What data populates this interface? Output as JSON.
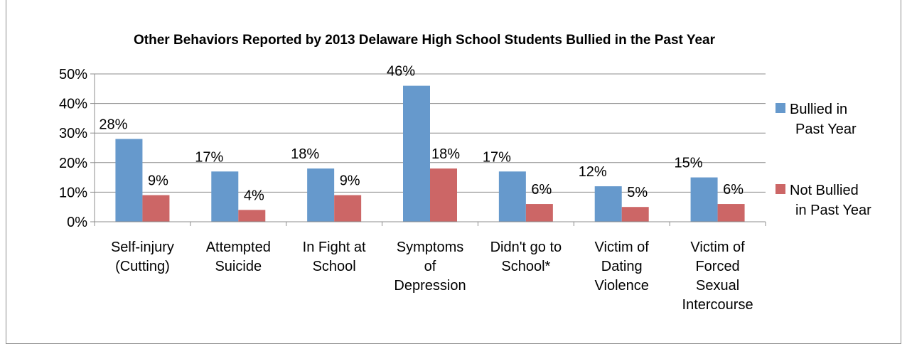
{
  "chart_data": {
    "type": "bar",
    "title": "Other Behaviors Reported by 2013 Delaware High School Students Bullied in the Past Year",
    "xlabel": "",
    "ylabel": "",
    "ylim": [
      0,
      50
    ],
    "yticks": [
      "0%",
      "10%",
      "20%",
      "30%",
      "40%",
      "50%"
    ],
    "grid": true,
    "legend_position": "right",
    "categories": [
      [
        "Self-injury",
        "(Cutting)"
      ],
      [
        "Attempted",
        "Suicide"
      ],
      [
        "In Fight at",
        "School"
      ],
      [
        "Symptoms",
        "of",
        "Depression"
      ],
      [
        "Didn't go to",
        "School*"
      ],
      [
        "Victim of",
        "Dating",
        "Violence"
      ],
      [
        "Victim of",
        "Forced",
        "Sexual",
        "Intercourse"
      ]
    ],
    "series": [
      {
        "name": [
          "Bullied in",
          "Past Year"
        ],
        "color": "#6699cc",
        "values": [
          28,
          17,
          18,
          46,
          17,
          12,
          15
        ],
        "labels": [
          "28%",
          "17%",
          "18%",
          "46%",
          "17%",
          "12%",
          "15%"
        ]
      },
      {
        "name": [
          "Not Bullied",
          "in Past Year"
        ],
        "color": "#cc6666",
        "values": [
          9,
          4,
          9,
          18,
          6,
          5,
          6
        ],
        "labels": [
          "9%",
          "4%",
          "9%",
          "18%",
          "6%",
          "5%",
          "6%"
        ]
      }
    ]
  }
}
